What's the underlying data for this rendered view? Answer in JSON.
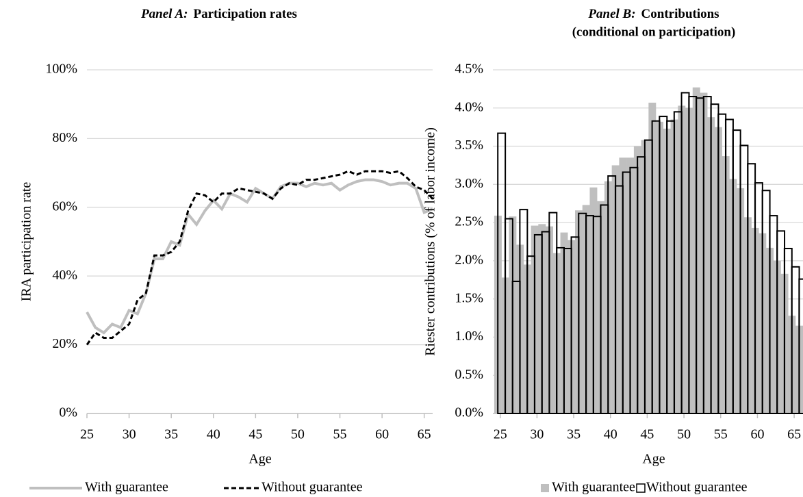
{
  "chart_data": [
    {
      "type": "line",
      "title_label": "Panel A:",
      "title": "Participation rates",
      "xlabel": "Age",
      "ylabel": "IRA participation rate",
      "x": [
        25,
        26,
        27,
        28,
        29,
        30,
        31,
        32,
        33,
        34,
        35,
        36,
        37,
        38,
        39,
        40,
        41,
        42,
        43,
        44,
        45,
        46,
        47,
        48,
        49,
        50,
        51,
        52,
        53,
        54,
        55,
        56,
        57,
        58,
        59,
        60,
        61,
        62,
        63,
        64,
        65,
        66
      ],
      "xlim": [
        25,
        66
      ],
      "xticks": [
        25,
        30,
        35,
        40,
        45,
        50,
        55,
        60,
        65
      ],
      "ylim": [
        0,
        100
      ],
      "yticks": [
        {
          "value": 0,
          "label": "0%"
        },
        {
          "value": 20,
          "label": "20%"
        },
        {
          "value": 40,
          "label": "40%"
        },
        {
          "value": 60,
          "label": "60%"
        },
        {
          "value": 80,
          "label": "80%"
        },
        {
          "value": 100,
          "label": "100%"
        }
      ],
      "grid": true,
      "series": [
        {
          "name": "With guarantee",
          "color": "#bfbfbf",
          "style": "solid",
          "values": [
            29.5,
            25,
            23.5,
            26,
            25,
            30,
            29,
            35,
            45,
            45,
            50,
            49,
            58,
            55,
            59,
            62,
            59.5,
            64,
            63,
            61.5,
            65.5,
            64,
            62.5,
            66,
            67,
            67,
            66,
            67,
            66.5,
            67,
            65,
            66.5,
            67.5,
            68,
            68,
            67.5,
            66.5,
            67,
            67,
            65.5,
            58.5,
            59.5
          ]
        },
        {
          "name": "Without guarantee",
          "color": "#000000",
          "style": "dashed",
          "values": [
            20,
            23.5,
            22,
            22,
            24,
            26,
            33,
            35,
            46,
            46,
            47,
            50,
            59,
            64,
            63.5,
            61.5,
            64,
            64,
            65.5,
            65,
            64.5,
            64,
            62.5,
            65.5,
            67,
            66.5,
            68,
            68,
            68.5,
            69,
            69.5,
            70.5,
            69.5,
            70.5,
            70.5,
            70.5,
            70,
            70.5,
            68.5,
            66,
            65,
            62.5
          ]
        }
      ]
    },
    {
      "type": "bar",
      "title_label": "Panel B:",
      "title": "Contributions",
      "subtitle": "(conditional on participation)",
      "xlabel": "Age",
      "ylabel": "Riester contributions (% of labor income)",
      "x": [
        25,
        26,
        27,
        28,
        29,
        30,
        31,
        32,
        33,
        34,
        35,
        36,
        37,
        38,
        39,
        40,
        41,
        42,
        43,
        44,
        45,
        46,
        47,
        48,
        49,
        50,
        51,
        52,
        53,
        54,
        55,
        56,
        57,
        58,
        59,
        60,
        61,
        62,
        63,
        64,
        65,
        66
      ],
      "xlim": [
        24,
        66.2
      ],
      "xticks": [
        25,
        30,
        35,
        40,
        45,
        50,
        55,
        60,
        65
      ],
      "ylim": [
        0,
        4.5
      ],
      "yticks": [
        {
          "value": 0,
          "label": "0.0%"
        },
        {
          "value": 0.5,
          "label": "0.5%"
        },
        {
          "value": 1,
          "label": "1.0%"
        },
        {
          "value": 1.5,
          "label": "1.5%"
        },
        {
          "value": 2,
          "label": "2.0%"
        },
        {
          "value": 2.5,
          "label": "2.5%"
        },
        {
          "value": 3,
          "label": "3.0%"
        },
        {
          "value": 3.5,
          "label": "3.5%"
        },
        {
          "value": 4,
          "label": "4.0%"
        },
        {
          "value": 4.5,
          "label": "4.5%"
        }
      ],
      "grid": true,
      "series": [
        {
          "name": "With guarantee",
          "color": "#bfbfbf",
          "style": "solid",
          "values": [
            2.59,
            1.78,
            2.58,
            2.21,
            1.95,
            2.46,
            2.48,
            2.45,
            2.1,
            2.37,
            2.27,
            2.66,
            2.73,
            2.96,
            2.78,
            3.04,
            3.25,
            3.35,
            3.35,
            3.5,
            3.58,
            4.07,
            3.82,
            3.73,
            3.85,
            4.03,
            4.0,
            4.27,
            4.2,
            3.88,
            3.75,
            3.37,
            3.07,
            2.95,
            2.57,
            2.43,
            2.36,
            2.17,
            2.0,
            1.83,
            1.28,
            1.15
          ]
        },
        {
          "name": "Without guarantee",
          "color": "#000000",
          "style": "outline",
          "values": [
            3.67,
            2.55,
            1.73,
            2.67,
            2.06,
            2.34,
            2.38,
            2.63,
            2.17,
            2.16,
            2.31,
            2.62,
            2.59,
            2.58,
            2.73,
            3.11,
            2.98,
            3.16,
            3.22,
            3.36,
            3.58,
            3.83,
            3.89,
            3.83,
            3.95,
            4.2,
            4.15,
            4.13,
            4.15,
            4.05,
            3.92,
            3.85,
            3.71,
            3.51,
            3.27,
            3.02,
            2.92,
            2.59,
            2.39,
            2.16,
            1.92,
            1.76
          ]
        }
      ]
    }
  ]
}
